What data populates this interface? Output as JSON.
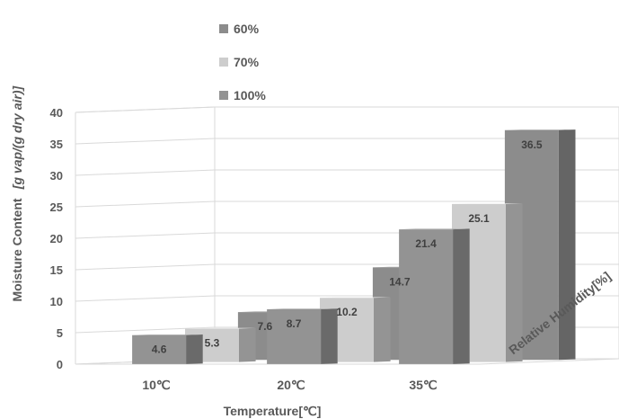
{
  "chart_data": {
    "type": "bar",
    "subtype": "3d-clustered-column",
    "categories": [
      "10℃",
      "20℃",
      "35℃"
    ],
    "series": [
      {
        "name": "60%",
        "values": [
          7.6,
          14.7,
          36.5
        ],
        "color": "#8c8c8c"
      },
      {
        "name": "70%",
        "values": [
          5.3,
          10.2,
          25.1
        ],
        "color": "#cdcdcd"
      },
      {
        "name": "100%",
        "values": [
          4.6,
          8.7,
          21.4
        ],
        "color": "#939393"
      }
    ],
    "yticks": [
      "0",
      "5",
      "10",
      "15",
      "20",
      "25",
      "30",
      "35",
      "40"
    ],
    "ylim": [
      0,
      40
    ],
    "xlabel": "Temperature[℃]",
    "ylabel": "Moisture Content",
    "ylabel_unit": "[g vap/(g dry air)]",
    "zlabel": "Relative Humidity[%]",
    "legend_position": "top-left",
    "grid": true
  }
}
